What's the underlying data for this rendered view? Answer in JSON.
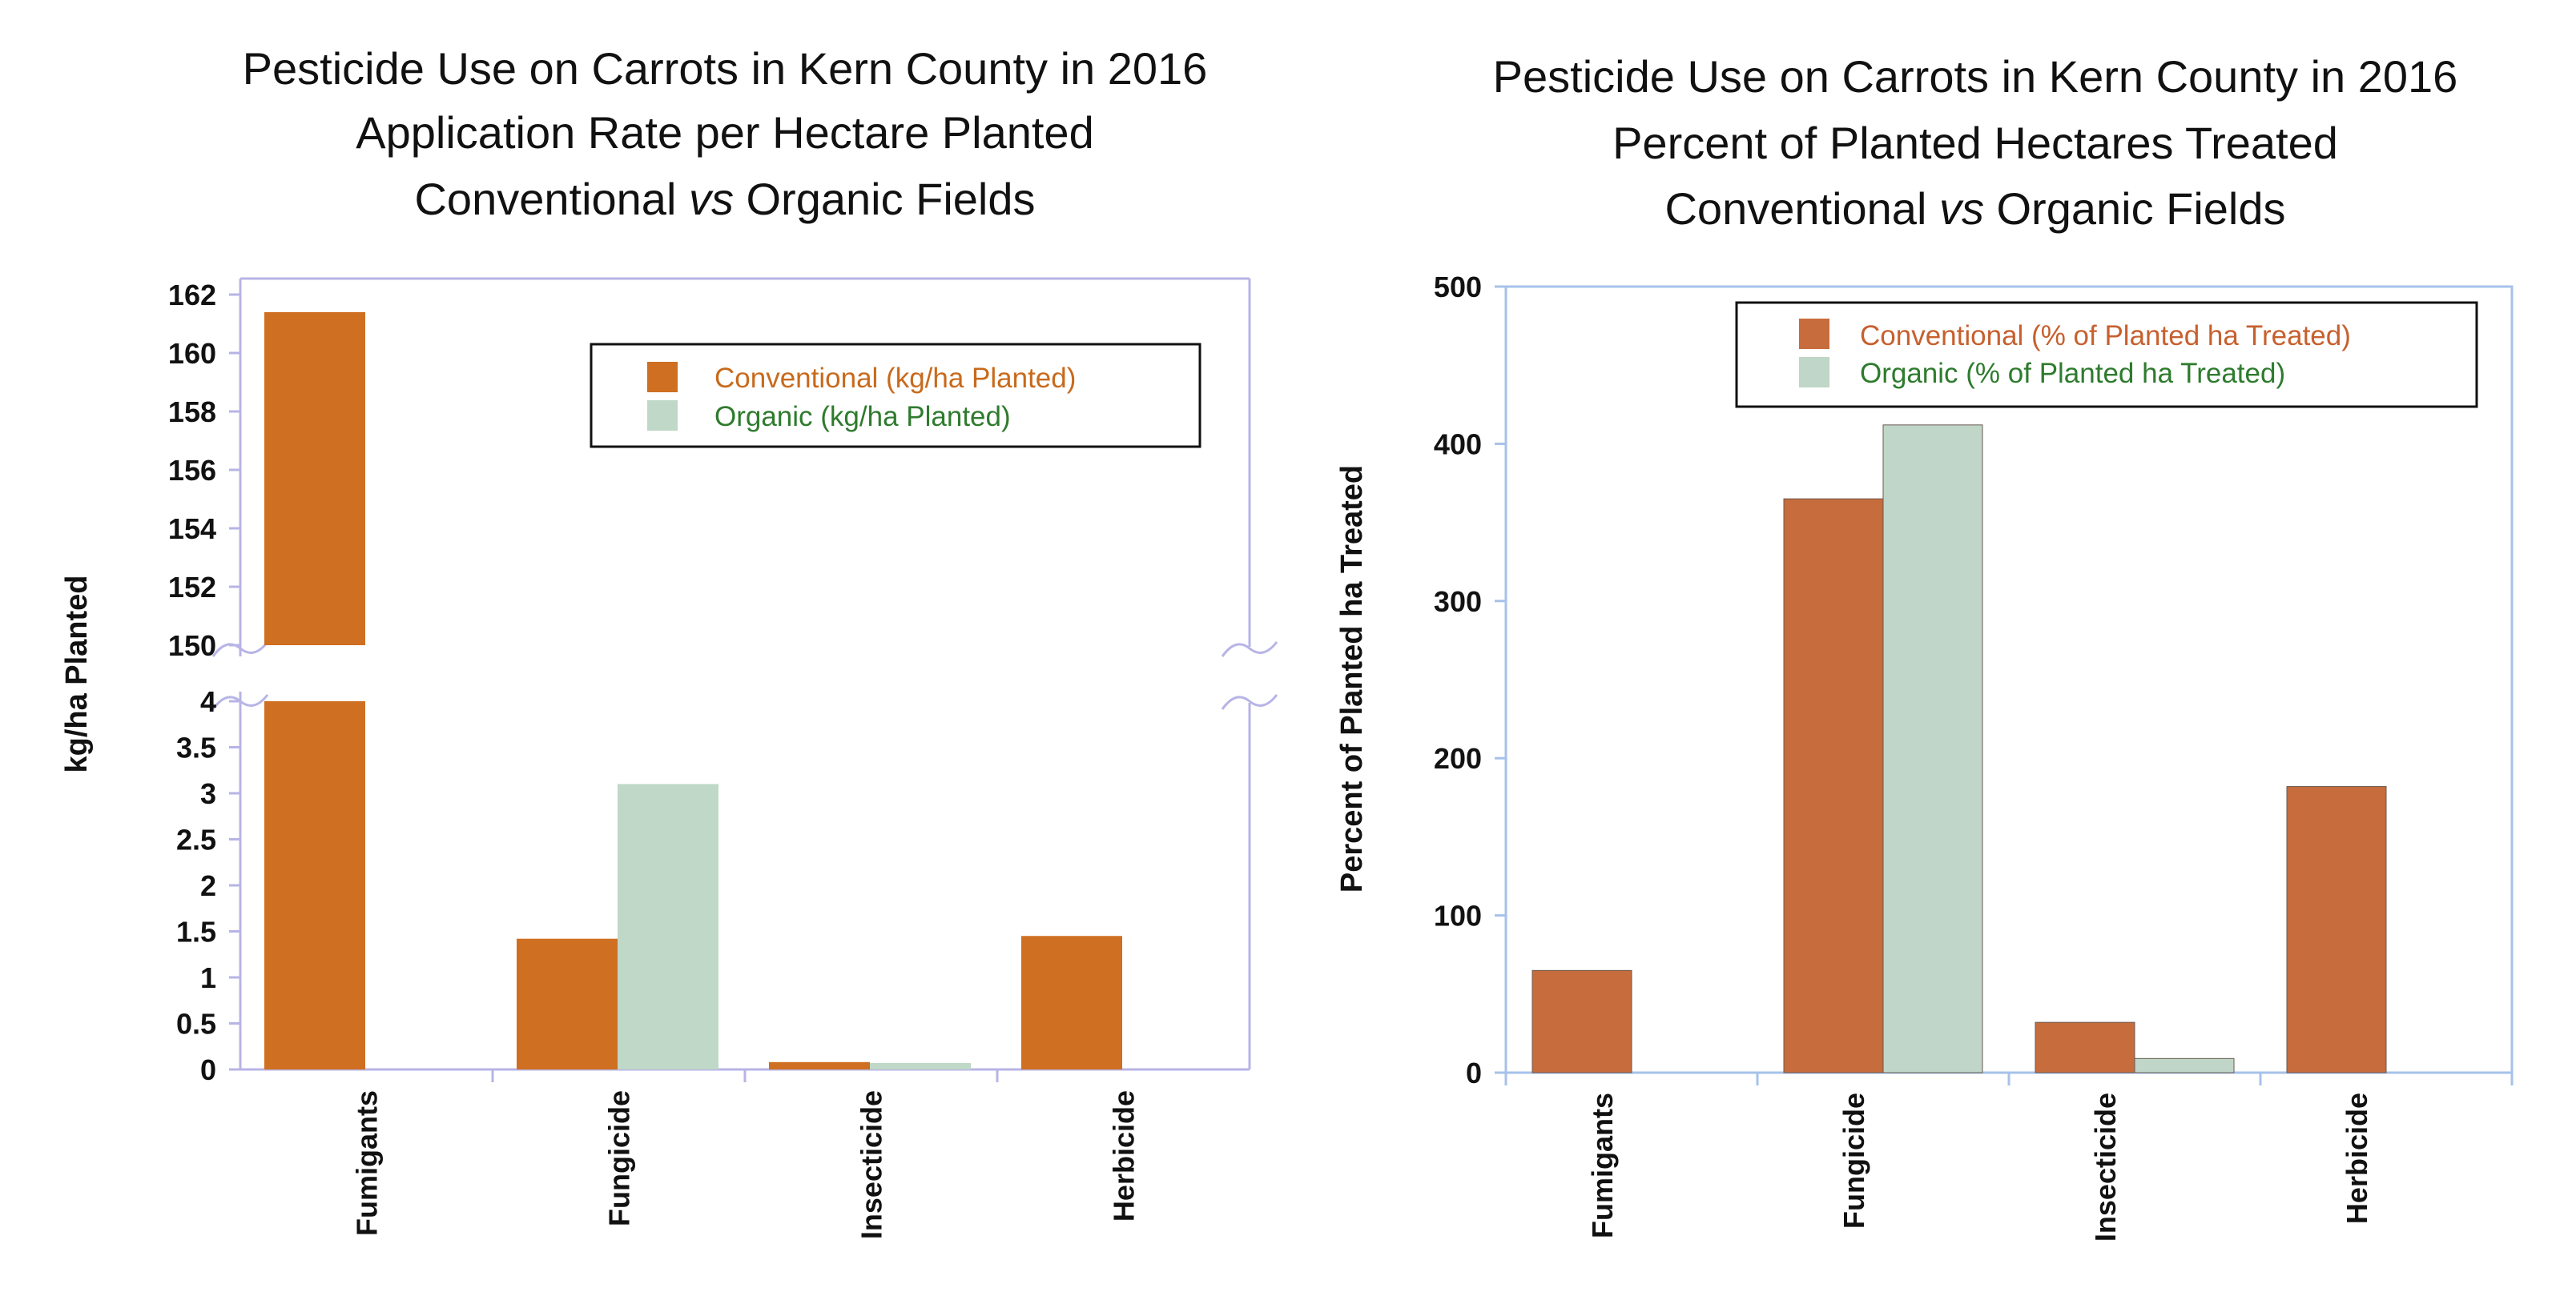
{
  "colors": {
    "left_conventional": "#cf6f22",
    "left_organic": "#bfd8c7",
    "right_conventional": "#c76c3c",
    "right_organic": "#bfd6c8",
    "left_axis": "#b7b4e6",
    "right_axis": "#a6c2ea",
    "legend_conv_text_left": "#c86a1c",
    "legend_org_text_left": "#2e7b2e",
    "legend_conv_text_right": "#c7602e",
    "legend_org_text_right": "#2e7b2e"
  },
  "chart_data": [
    {
      "type": "bar",
      "title_lines": [
        "Pesticide Use on Carrots in Kern County in 2016",
        "Application Rate per Hectare Planted"
      ],
      "title_line3": {
        "pre": "Conventional ",
        "italic": "vs",
        "post": " Organic Fields"
      },
      "xlabel": "",
      "ylabel": "kg/ha Planted",
      "categories": [
        "Fumigants",
        "Fungicide",
        "Insecticide",
        "Herbicide"
      ],
      "broken_axis": {
        "lower": {
          "ylim": [
            0,
            4
          ],
          "ticks": [
            "0",
            "0.5",
            "1",
            "1.5",
            "2",
            "2.5",
            "3",
            "3.5",
            "4"
          ]
        },
        "upper": {
          "ylim": [
            150,
            162
          ],
          "ticks": [
            "150",
            "152",
            "154",
            "156",
            "158",
            "160",
            "162"
          ]
        }
      },
      "series": [
        {
          "name": "Conventional (kg/ha Planted)",
          "values": [
            161.4,
            1.42,
            0.08,
            1.45
          ]
        },
        {
          "name": "Organic (kg/ha Planted)",
          "values": [
            0,
            3.1,
            0.07,
            0
          ]
        }
      ],
      "legend_position": "top-right"
    },
    {
      "type": "bar",
      "title_lines": [
        "Pesticide Use on Carrots in Kern County in 2016",
        "Percent of Planted Hectares Treated"
      ],
      "title_line3": {
        "pre": "Conventional ",
        "italic": "vs",
        "post": " Organic Fields"
      },
      "xlabel": "",
      "ylabel": "Percent of Planted ha Treated",
      "categories": [
        "Fumigants",
        "Fungicide",
        "Insecticide",
        "Herbicide"
      ],
      "ylim": [
        0,
        500
      ],
      "ticks": [
        "0",
        "100",
        "200",
        "300",
        "400",
        "500"
      ],
      "series": [
        {
          "name": "Conventional (% of Planted ha Treated)",
          "values": [
            65,
            365,
            32,
            182
          ]
        },
        {
          "name": "Organic (% of Planted ha Treated)",
          "values": [
            0,
            412,
            9,
            0
          ]
        }
      ],
      "legend_position": "top-left"
    }
  ]
}
